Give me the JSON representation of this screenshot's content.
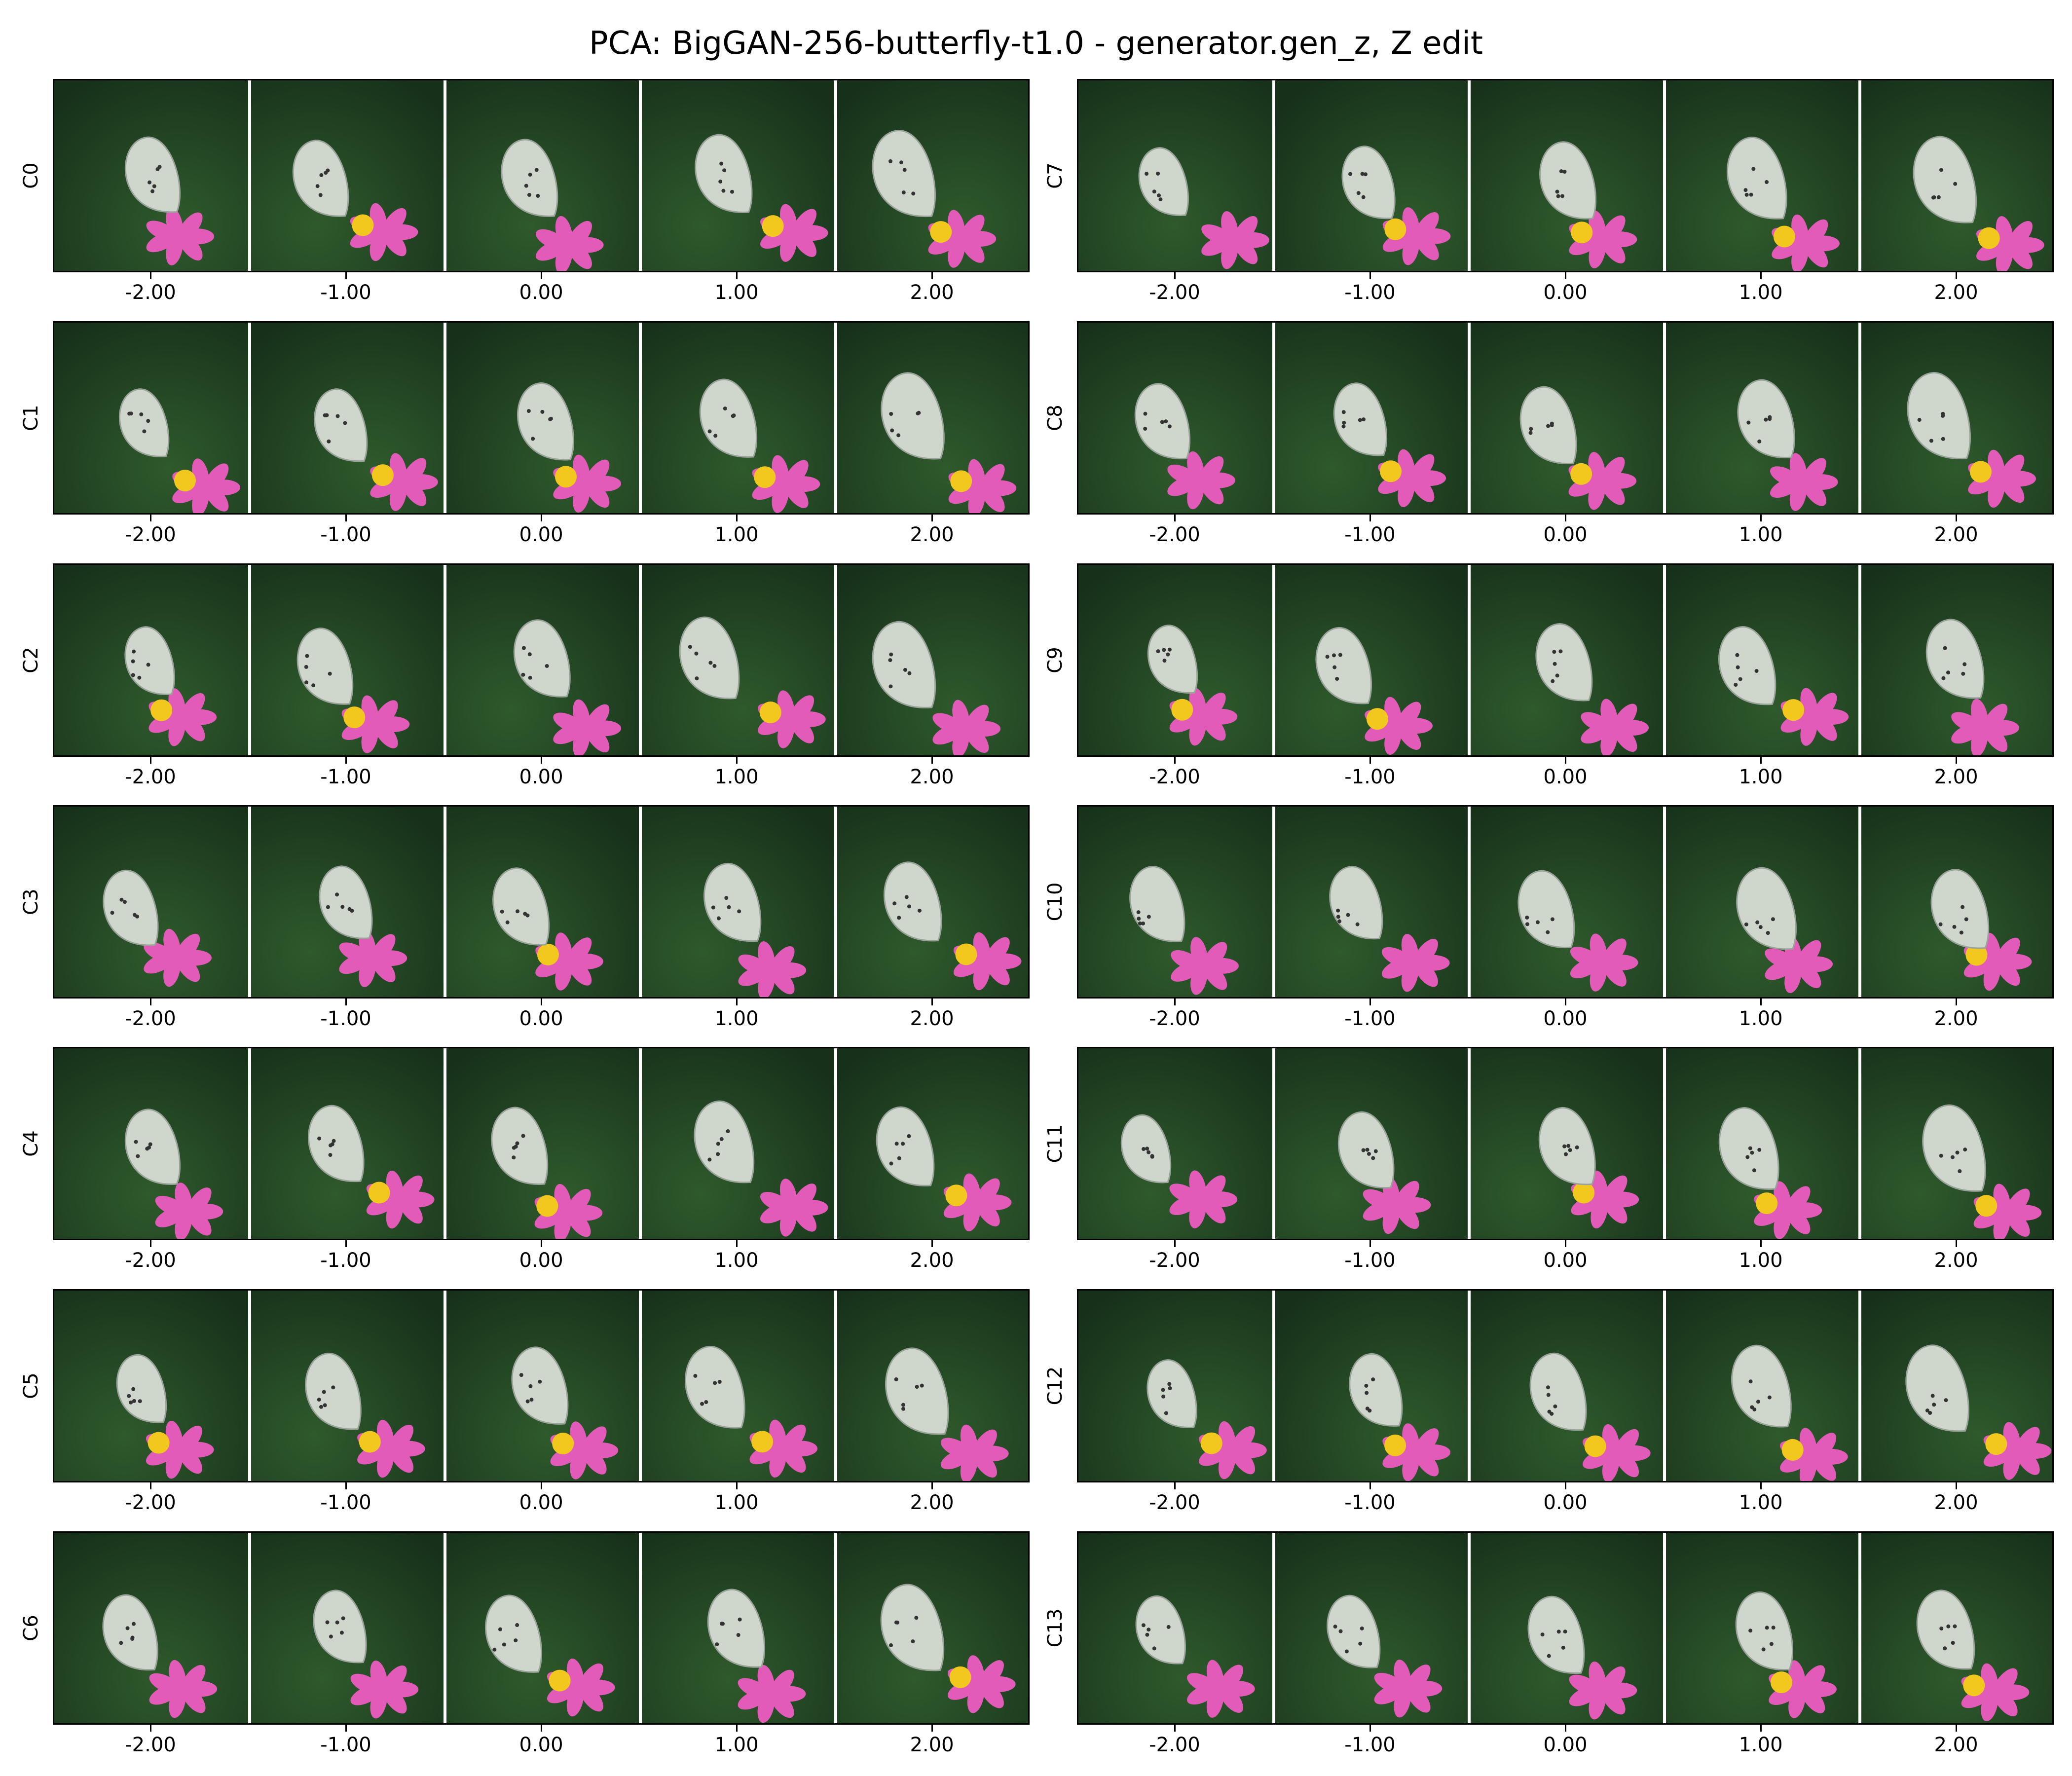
{
  "title": "PCA: BigGAN-256-butterfly-t1.0 - generator.gen_z, Z edit",
  "columns": {
    "left": [
      "C0",
      "C1",
      "C2",
      "C3",
      "C4",
      "C5",
      "C6"
    ],
    "right": [
      "C7",
      "C8",
      "C9",
      "C10",
      "C11",
      "C12",
      "C13"
    ]
  },
  "x_ticks": [
    "-2.00",
    "-1.00",
    "0.00",
    "1.00",
    "2.00"
  ],
  "colors": {
    "background": "#ffffff",
    "foliage_dark": "#16301a",
    "foliage_light": "#2f5a2c",
    "butterfly_wing": "#cfd6cc",
    "flower_pink": "#e25bb8",
    "flower_yellow": "#f2c81e",
    "separator": "#ffffff"
  }
}
